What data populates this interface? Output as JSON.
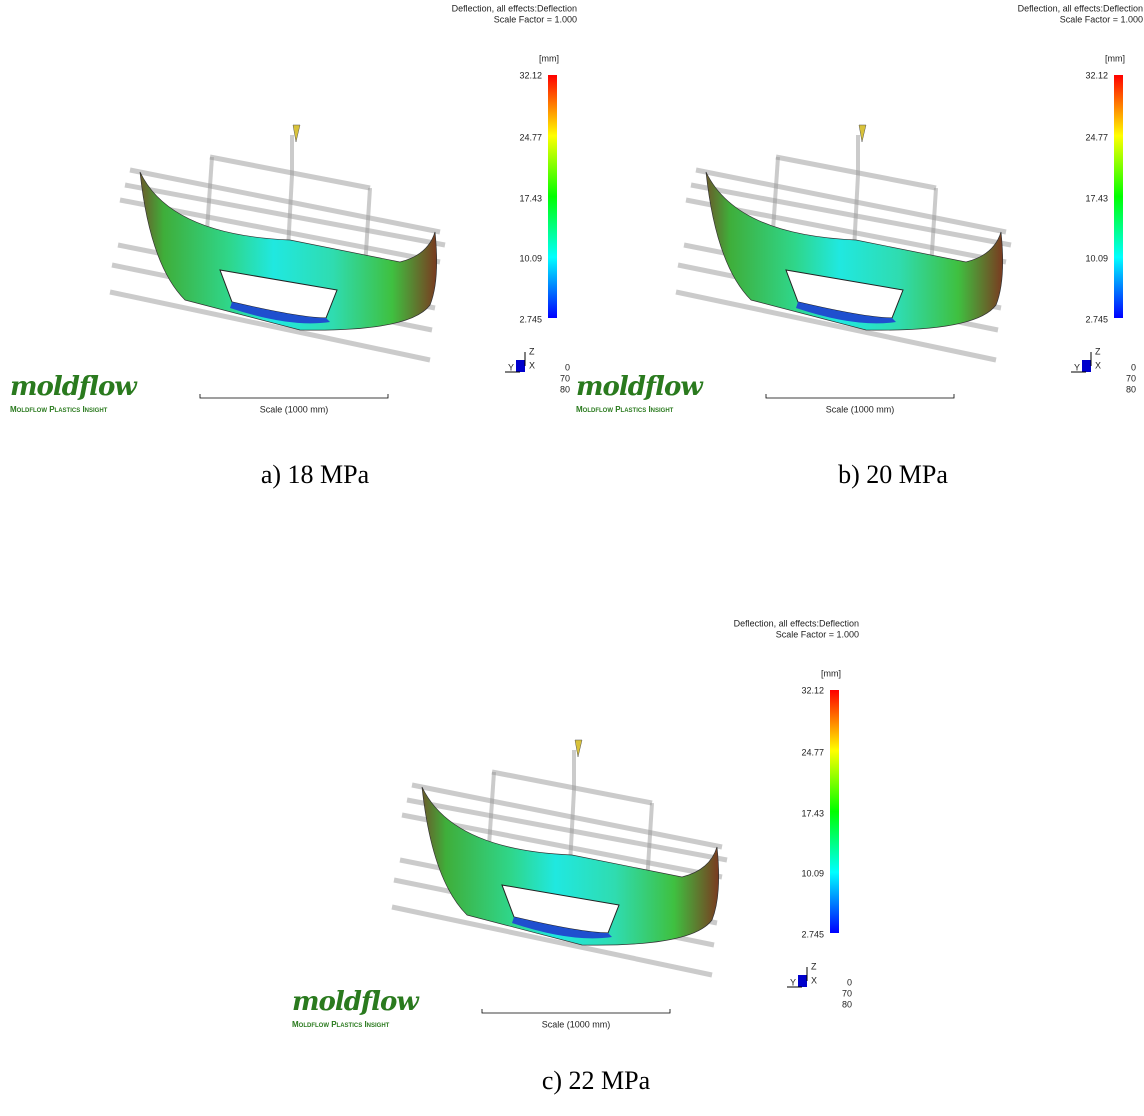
{
  "panels": [
    {
      "title": "Deflection, all effects:Deflection",
      "scale_factor": "Scale Factor = 1.000",
      "unit": "[mm]",
      "legend_ticks": [
        "32.12",
        "24.77",
        "17.43",
        "10.09",
        "2.745"
      ],
      "triad": [
        "Z",
        "Y",
        "X"
      ],
      "axis_numbers": [
        "0",
        "70",
        "80"
      ],
      "logo": "moldflow",
      "logo_sub": "Moldflow Plastics Insight",
      "scale_bar": "Scale (1000 mm)",
      "caption": "a) 18 MPa"
    },
    {
      "title": "Deflection, all effects:Deflection",
      "scale_factor": "Scale Factor = 1.000",
      "unit": "[mm]",
      "legend_ticks": [
        "32.12",
        "24.77",
        "17.43",
        "10.09",
        "2.745"
      ],
      "triad": [
        "Z",
        "Y",
        "X"
      ],
      "axis_numbers": [
        "0",
        "70",
        "80"
      ],
      "logo": "moldflow",
      "logo_sub": "Moldflow Plastics Insight",
      "scale_bar": "Scale (1000 mm)",
      "caption": "b) 20 MPa"
    },
    {
      "title": "Deflection, all effects:Deflection",
      "scale_factor": "Scale Factor = 1.000",
      "unit": "[mm]",
      "legend_ticks": [
        "32.12",
        "24.77",
        "17.43",
        "10.09",
        "2.745"
      ],
      "triad": [
        "Z",
        "Y",
        "X"
      ],
      "axis_numbers": [
        "0",
        "70",
        "80"
      ],
      "logo": "moldflow",
      "logo_sub": "Moldflow Plastics Insight",
      "scale_bar": "Scale (1000 mm)",
      "caption": "c) 22 MPa"
    }
  ]
}
